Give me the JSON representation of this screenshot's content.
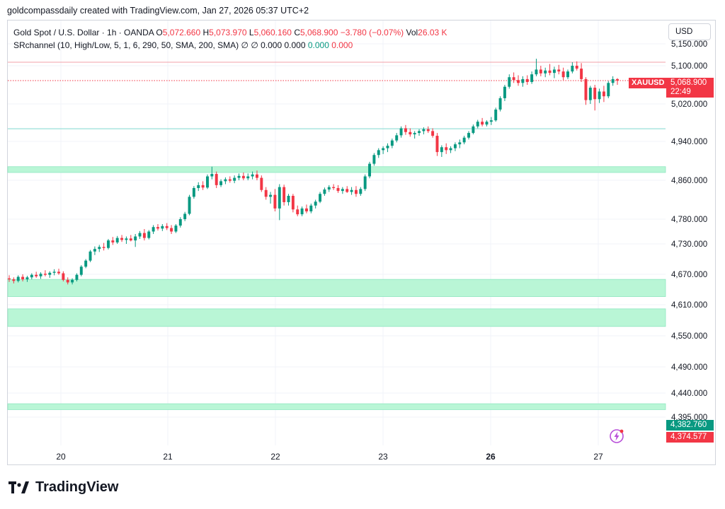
{
  "caption": "goldcompassdaily created with TradingView.com, Jan 27, 2026 05:37 UTC+2",
  "legend": {
    "symbol": "Gold Spot / U.S. Dollar · 1h · OANDA",
    "o_label": "O",
    "o_value": "5,072.660",
    "h_label": "H",
    "h_value": "5,073.970",
    "l_label": "L",
    "l_value": "5,060.160",
    "c_label": "C",
    "c_value": "5,068.900",
    "change": "−3.780 (−0.07%)",
    "vol_label": "Vol",
    "vol_value": "26.03 K",
    "indicator": "SRchannel (10, High/Low, 5, 1, 6, 290, 50, SMA, 200, SMA)",
    "ind_values_gray": "∅  ∅  0.000  0.000",
    "ind_value_green": "0.000",
    "ind_value_red": "0.000"
  },
  "currency": "USD",
  "ticker_label": "XAUUSD",
  "price_badge": {
    "price": "5,068.900",
    "countdown": "22:49"
  },
  "low_badges": {
    "green": "4,382.760",
    "red": "4,374.577"
  },
  "brand": "TradingView",
  "colors": {
    "up": "#089981",
    "down": "#f23645",
    "zone": "#b9f6d6",
    "zone_line": "#8ee6c0",
    "cyan_line": "#7fd9cf",
    "pink_line": "#f3a0a8"
  },
  "chart_data": {
    "type": "candlestick",
    "y_ticks": [
      "5,150.000",
      "5,100.000",
      "5,020.000",
      "4,940.000",
      "4,860.000",
      "4,780.000",
      "4,730.000",
      "4,670.000",
      "4,610.000",
      "4,550.000",
      "4,490.000",
      "4,440.000",
      "4,395.000"
    ],
    "x_ticks": [
      {
        "label": "20",
        "bold": false
      },
      {
        "label": "21",
        "bold": false
      },
      {
        "label": "22",
        "bold": false
      },
      {
        "label": "23",
        "bold": false
      },
      {
        "label": "26",
        "bold": true
      },
      {
        "label": "27",
        "bold": false
      }
    ],
    "support_resistance_zones": [
      {
        "from": 4876,
        "to": 4888
      },
      {
        "from": 4626,
        "to": 4660
      },
      {
        "from": 4568,
        "to": 4602
      },
      {
        "from": 4409,
        "to": 4420
      }
    ],
    "horizontal_lines": [
      {
        "value": 5108,
        "style": "solid",
        "color": "pink"
      },
      {
        "value": 5068.9,
        "style": "dotted",
        "color": "red"
      },
      {
        "value": 4967,
        "style": "solid",
        "color": "cyan"
      }
    ],
    "candles": [
      [
        4662,
        4668,
        4655,
        4660
      ],
      [
        4660,
        4664,
        4652,
        4657
      ],
      [
        4657,
        4668,
        4654,
        4665
      ],
      [
        4665,
        4670,
        4656,
        4660
      ],
      [
        4660,
        4667,
        4655,
        4664
      ],
      [
        4664,
        4672,
        4660,
        4669
      ],
      [
        4669,
        4675,
        4663,
        4666
      ],
      [
        4666,
        4674,
        4661,
        4671
      ],
      [
        4671,
        4678,
        4666,
        4669
      ],
      [
        4669,
        4676,
        4663,
        4673
      ],
      [
        4673,
        4680,
        4668,
        4675
      ],
      [
        4675,
        4681,
        4669,
        4672
      ],
      [
        4672,
        4676,
        4656,
        4659
      ],
      [
        4659,
        4664,
        4650,
        4654
      ],
      [
        4654,
        4662,
        4650,
        4659
      ],
      [
        4659,
        4672,
        4656,
        4669
      ],
      [
        4669,
        4688,
        4666,
        4685
      ],
      [
        4685,
        4700,
        4682,
        4697
      ],
      [
        4697,
        4718,
        4694,
        4715
      ],
      [
        4715,
        4725,
        4708,
        4720
      ],
      [
        4720,
        4728,
        4714,
        4724
      ],
      [
        4724,
        4732,
        4717,
        4722
      ],
      [
        4722,
        4740,
        4719,
        4737
      ],
      [
        4737,
        4744,
        4728,
        4733
      ],
      [
        4733,
        4746,
        4730,
        4742
      ],
      [
        4742,
        4748,
        4734,
        4738
      ],
      [
        4738,
        4745,
        4730,
        4741
      ],
      [
        4741,
        4748,
        4735,
        4737
      ],
      [
        4737,
        4750,
        4724,
        4745
      ],
      [
        4745,
        4756,
        4740,
        4752
      ],
      [
        4752,
        4760,
        4737,
        4742
      ],
      [
        4742,
        4758,
        4739,
        4755
      ],
      [
        4755,
        4768,
        4750,
        4764
      ],
      [
        4764,
        4770,
        4757,
        4761
      ],
      [
        4761,
        4770,
        4756,
        4766
      ],
      [
        4766,
        4772,
        4758,
        4762
      ],
      [
        4762,
        4768,
        4750,
        4755
      ],
      [
        4755,
        4770,
        4752,
        4767
      ],
      [
        4767,
        4784,
        4763,
        4780
      ],
      [
        4780,
        4795,
        4776,
        4791
      ],
      [
        4791,
        4830,
        4788,
        4826
      ],
      [
        4826,
        4848,
        4822,
        4844
      ],
      [
        4844,
        4856,
        4838,
        4850
      ],
      [
        4850,
        4858,
        4840,
        4845
      ],
      [
        4845,
        4872,
        4842,
        4868
      ],
      [
        4868,
        4888,
        4862,
        4873
      ],
      [
        4873,
        4878,
        4844,
        4850
      ],
      [
        4850,
        4862,
        4846,
        4858
      ],
      [
        4858,
        4866,
        4852,
        4862
      ],
      [
        4862,
        4868,
        4855,
        4859
      ],
      [
        4859,
        4870,
        4854,
        4865
      ],
      [
        4865,
        4874,
        4860,
        4869
      ],
      [
        4869,
        4876,
        4860,
        4864
      ],
      [
        4864,
        4874,
        4860,
        4868
      ],
      [
        4868,
        4878,
        4862,
        4872
      ],
      [
        4872,
        4880,
        4860,
        4865
      ],
      [
        4865,
        4870,
        4836,
        4840
      ],
      [
        4840,
        4846,
        4820,
        4826
      ],
      [
        4826,
        4836,
        4812,
        4830
      ],
      [
        4830,
        4842,
        4796,
        4802
      ],
      [
        4802,
        4852,
        4778,
        4846
      ],
      [
        4846,
        4851,
        4808,
        4815
      ],
      [
        4815,
        4832,
        4808,
        4828
      ],
      [
        4828,
        4832,
        4794,
        4800
      ],
      [
        4800,
        4808,
        4786,
        4790
      ],
      [
        4790,
        4806,
        4786,
        4802
      ],
      [
        4802,
        4810,
        4792,
        4796
      ],
      [
        4796,
        4812,
        4792,
        4808
      ],
      [
        4808,
        4820,
        4802,
        4816
      ],
      [
        4816,
        4836,
        4813,
        4832
      ],
      [
        4832,
        4845,
        4828,
        4841
      ],
      [
        4841,
        4850,
        4836,
        4846
      ],
      [
        4846,
        4852,
        4840,
        4844
      ],
      [
        4844,
        4850,
        4834,
        4838
      ],
      [
        4838,
        4846,
        4832,
        4842
      ],
      [
        4842,
        4848,
        4834,
        4836
      ],
      [
        4836,
        4846,
        4830,
        4840
      ],
      [
        4840,
        4848,
        4826,
        4832
      ],
      [
        4832,
        4846,
        4828,
        4842
      ],
      [
        4842,
        4872,
        4838,
        4868
      ],
      [
        4868,
        4898,
        4864,
        4894
      ],
      [
        4894,
        4916,
        4890,
        4912
      ],
      [
        4912,
        4926,
        4906,
        4922
      ],
      [
        4922,
        4930,
        4914,
        4926
      ],
      [
        4926,
        4936,
        4918,
        4931
      ],
      [
        4931,
        4946,
        4926,
        4942
      ],
      [
        4942,
        4958,
        4938,
        4953
      ],
      [
        4953,
        4972,
        4948,
        4968
      ],
      [
        4968,
        4975,
        4954,
        4960
      ],
      [
        4960,
        4968,
        4950,
        4955
      ],
      [
        4955,
        4962,
        4946,
        4958
      ],
      [
        4958,
        4966,
        4952,
        4962
      ],
      [
        4962,
        4970,
        4955,
        4966
      ],
      [
        4966,
        4972,
        4958,
        4962
      ],
      [
        4962,
        4968,
        4948,
        4952
      ],
      [
        4952,
        4958,
        4910,
        4918
      ],
      [
        4918,
        4932,
        4908,
        4928
      ],
      [
        4928,
        4936,
        4914,
        4922
      ],
      [
        4922,
        4930,
        4916,
        4926
      ],
      [
        4926,
        4938,
        4920,
        4934
      ],
      [
        4934,
        4944,
        4926,
        4938
      ],
      [
        4938,
        4952,
        4934,
        4948
      ],
      [
        4948,
        4962,
        4944,
        4958
      ],
      [
        4958,
        4976,
        4955,
        4972
      ],
      [
        4972,
        4986,
        4968,
        4982
      ],
      [
        4982,
        4990,
        4972,
        4976
      ],
      [
        4976,
        4985,
        4972,
        4982
      ],
      [
        4982,
        4992,
        4975,
        4985
      ],
      [
        4985,
        5012,
        4982,
        5008
      ],
      [
        5008,
        5036,
        5004,
        5032
      ],
      [
        5032,
        5060,
        5026,
        5056
      ],
      [
        5056,
        5082,
        5052,
        5076
      ],
      [
        5076,
        5086,
        5064,
        5070
      ],
      [
        5070,
        5080,
        5058,
        5064
      ],
      [
        5064,
        5078,
        5056,
        5072
      ],
      [
        5072,
        5080,
        5060,
        5066
      ],
      [
        5066,
        5088,
        5062,
        5082
      ],
      [
        5082,
        5116,
        5078,
        5092
      ],
      [
        5092,
        5100,
        5078,
        5084
      ],
      [
        5084,
        5096,
        5076,
        5090
      ],
      [
        5090,
        5104,
        5080,
        5085
      ],
      [
        5085,
        5098,
        5074,
        5092
      ],
      [
        5092,
        5102,
        5082,
        5088
      ],
      [
        5088,
        5096,
        5070,
        5076
      ],
      [
        5076,
        5092,
        5072,
        5088
      ],
      [
        5088,
        5108,
        5084,
        5100
      ],
      [
        5100,
        5110,
        5090,
        5094
      ],
      [
        5094,
        5106,
        5066,
        5072
      ],
      [
        5072,
        5076,
        5018,
        5028
      ],
      [
        5028,
        5058,
        5020,
        5054
      ],
      [
        5054,
        5060,
        5006,
        5030
      ],
      [
        5030,
        5052,
        5022,
        5046
      ],
      [
        5046,
        5058,
        5024,
        5036
      ],
      [
        5036,
        5068,
        5032,
        5064
      ],
      [
        5064,
        5078,
        5058,
        5072
      ],
      [
        5072,
        5074,
        5060,
        5069
      ]
    ]
  }
}
